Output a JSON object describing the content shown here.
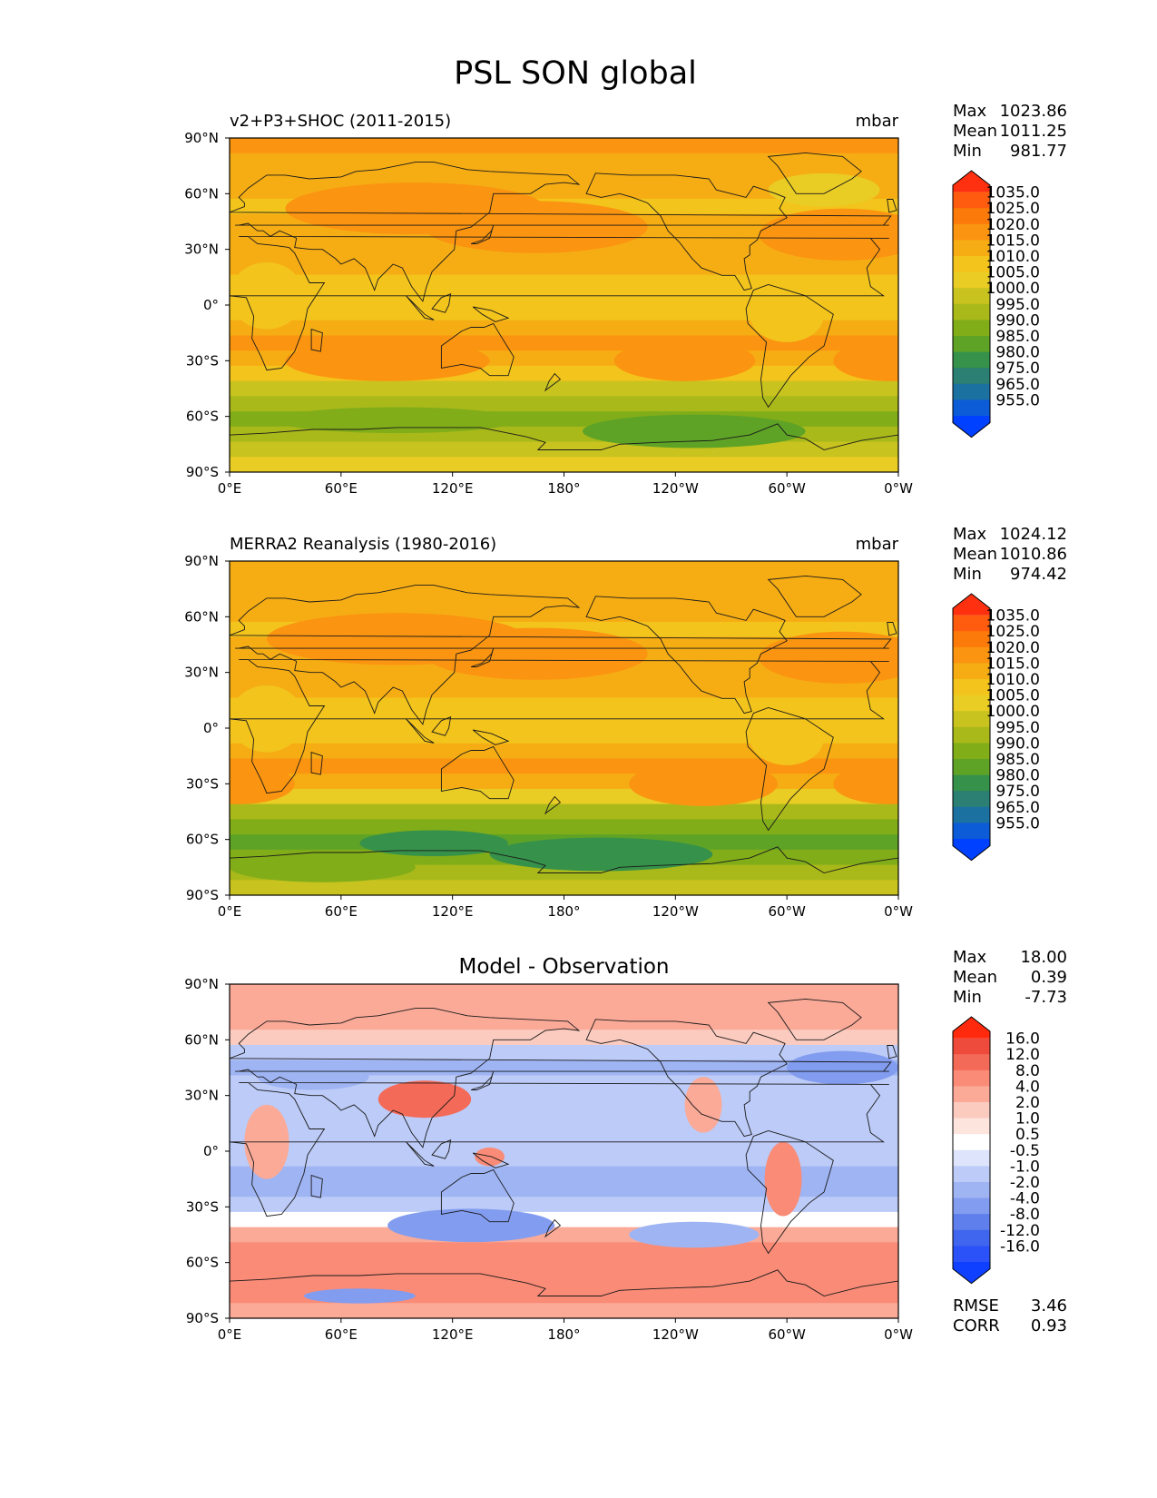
{
  "title": "PSL SON global",
  "chart_data": {
    "type": "heatmap",
    "suptitle": "PSL SON global",
    "x_ticks": [
      "0°E",
      "60°E",
      "120°E",
      "180°",
      "120°W",
      "60°W",
      "0°W"
    ],
    "y_ticks": [
      "90°N",
      "60°N",
      "30°N",
      "0°",
      "30°S",
      "60°S",
      "90°S"
    ],
    "xlim": [
      0,
      360
    ],
    "ylim": [
      -90,
      90
    ],
    "panels": [
      {
        "id": "model",
        "left_title": "v2+P3+SHOC (2011-2015)",
        "right_title": "mbar",
        "stats": [
          {
            "label": "Max",
            "value": "1023.86"
          },
          {
            "label": "Mean",
            "value": "1011.25"
          },
          {
            "label": "Min",
            "value": "981.77"
          }
        ],
        "colorbar_levels": [
          "1035.0",
          "1025.0",
          "1020.0",
          "1015.0",
          "1010.0",
          "1005.0",
          "1000.0",
          "995.0",
          "990.0",
          "985.0",
          "980.0",
          "975.0",
          "965.0",
          "955.0"
        ],
        "colorbar_colors": [
          "#ff3010",
          "#ff5c0f",
          "#fc7a0a",
          "#fb9410",
          "#f6ad14",
          "#f3c41c",
          "#e9cc24",
          "#c8c31f",
          "#a9b91a",
          "#81ad19",
          "#5ea326",
          "#36914a",
          "#2b7f73",
          "#1b71a0",
          "#0c5cd8",
          "#0040ff"
        ],
        "colorbar_extend": "both",
        "band_values": [
          1016.5,
          1015,
          1013,
          1011,
          1008,
          1011,
          1013,
          1014.5,
          1012,
          1010,
          1008,
          1009.5,
          1014.5,
          1016.5,
          1013,
          1006,
          1000,
          993,
          990,
          994,
          998,
          1002
        ],
        "highs": [
          {
            "lon": 100,
            "lat": 52,
            "rx": 70,
            "ry": 14,
            "value": 1018
          },
          {
            "lon": 165,
            "lat": 42,
            "rx": 60,
            "ry": 14,
            "value": 1018
          },
          {
            "lon": 330,
            "lat": 38,
            "rx": 45,
            "ry": 14,
            "value": 1018
          },
          {
            "lon": 85,
            "lat": -30,
            "rx": 55,
            "ry": 11,
            "value": 1019
          },
          {
            "lon": 245,
            "lat": -30,
            "rx": 38,
            "ry": 11,
            "value": 1019
          },
          {
            "lon": 355,
            "lat": -30,
            "rx": 30,
            "ry": 11,
            "value": 1019
          },
          {
            "lon": 20,
            "lat": 5,
            "rx": 20,
            "ry": 18,
            "value": 1009
          },
          {
            "lon": 300,
            "lat": -5,
            "rx": 20,
            "ry": 15,
            "value": 1009
          }
        ],
        "lows": [
          {
            "lon": 90,
            "lat": -62,
            "rx": 65,
            "ry": 7,
            "value": 988
          },
          {
            "lon": 250,
            "lat": -68,
            "rx": 60,
            "ry": 9,
            "value": 984
          },
          {
            "lon": 320,
            "lat": 62,
            "rx": 30,
            "ry": 9,
            "value": 1005
          }
        ],
        "rmse": null,
        "corr": null
      },
      {
        "id": "observation",
        "left_title": "MERRA2 Reanalysis (1980-2016)",
        "right_title": "mbar",
        "stats": [
          {
            "label": "Max",
            "value": "1024.12"
          },
          {
            "label": "Mean",
            "value": "1010.86"
          },
          {
            "label": "Min",
            "value": "974.42"
          }
        ],
        "colorbar_levels": [
          "1035.0",
          "1025.0",
          "1020.0",
          "1015.0",
          "1010.0",
          "1005.0",
          "1000.0",
          "995.0",
          "990.0",
          "985.0",
          "980.0",
          "975.0",
          "965.0",
          "955.0"
        ],
        "colorbar_colors": [
          "#ff3010",
          "#ff5c0f",
          "#fc7a0a",
          "#fb9410",
          "#f6ad14",
          "#f3c41c",
          "#e9cc24",
          "#c8c31f",
          "#a9b91a",
          "#81ad19",
          "#5ea326",
          "#36914a",
          "#2b7f73",
          "#1b71a0",
          "#0c5cd8",
          "#0040ff"
        ],
        "colorbar_extend": "both",
        "band_values": [
          1012,
          1012.5,
          1012.5,
          1011,
          1008,
          1011,
          1013,
          1014.5,
          1012,
          1010,
          1008,
          1009.5,
          1014.5,
          1016,
          1013,
          1004,
          995,
          987,
          983,
          987,
          993,
          998
        ],
        "highs": [
          {
            "lon": 90,
            "lat": 48,
            "rx": 70,
            "ry": 14,
            "value": 1019
          },
          {
            "lon": 165,
            "lat": 40,
            "rx": 60,
            "ry": 14,
            "value": 1018
          },
          {
            "lon": 330,
            "lat": 38,
            "rx": 45,
            "ry": 14,
            "value": 1018
          },
          {
            "lon": 5,
            "lat": -30,
            "rx": 30,
            "ry": 11,
            "value": 1019
          },
          {
            "lon": 255,
            "lat": -30,
            "rx": 40,
            "ry": 12,
            "value": 1020
          },
          {
            "lon": 355,
            "lat": -30,
            "rx": 30,
            "ry": 11,
            "value": 1019
          },
          {
            "lon": 20,
            "lat": 5,
            "rx": 20,
            "ry": 18,
            "value": 1009
          },
          {
            "lon": 300,
            "lat": -5,
            "rx": 20,
            "ry": 15,
            "value": 1009
          }
        ],
        "lows": [
          {
            "lon": 110,
            "lat": -62,
            "rx": 40,
            "ry": 7,
            "value": 978
          },
          {
            "lon": 200,
            "lat": -68,
            "rx": 60,
            "ry": 9,
            "value": 977
          },
          {
            "lon": 50,
            "lat": -75,
            "rx": 50,
            "ry": 8,
            "value": 990
          }
        ],
        "rmse": null,
        "corr": null
      },
      {
        "id": "difference",
        "center_title": "Model - Observation",
        "stats": [
          {
            "label": "Max",
            "value": "18.00"
          },
          {
            "label": "Mean",
            "value": "0.39"
          },
          {
            "label": "Min",
            "value": "-7.73"
          }
        ],
        "colorbar_levels": [
          "16.0",
          "12.0",
          "8.0",
          "4.0",
          "2.0",
          "1.0",
          "0.5",
          "-0.5",
          "-1.0",
          "-2.0",
          "-4.0",
          "-8.0",
          "-12.0",
          "-16.0"
        ],
        "colorbar_colors": [
          "#ff2a0d",
          "#ee4b3d",
          "#f46a58",
          "#f98b77",
          "#fbaa98",
          "#fccbbf",
          "#fde4dd",
          "#ffffff",
          "#dde4fb",
          "#bccbf7",
          "#9fb4f3",
          "#829cef",
          "#5e7fec",
          "#4066f0",
          "#2b52f8",
          "#0f40ff"
        ],
        "colorbar_extend": "both",
        "band_values": [
          4,
          3.5,
          2.5,
          1.5,
          -1.5,
          -2,
          -1.5,
          -1.5,
          -1.5,
          -1,
          -1,
          -1,
          -2,
          -3,
          -1,
          0.2,
          3,
          6,
          7,
          6,
          5,
          4
        ],
        "highs": [
          {
            "lon": 105,
            "lat": 28,
            "rx": 25,
            "ry": 10,
            "value": 10
          },
          {
            "lon": 20,
            "lat": 5,
            "rx": 12,
            "ry": 20,
            "value": 3
          },
          {
            "lon": 298,
            "lat": -15,
            "rx": 10,
            "ry": 20,
            "value": 5
          },
          {
            "lon": 255,
            "lat": 25,
            "rx": 10,
            "ry": 15,
            "value": 3
          },
          {
            "lon": 140,
            "lat": -3,
            "rx": 8,
            "ry": 5,
            "value": 5
          }
        ],
        "lows": [
          {
            "lon": 130,
            "lat": -40,
            "rx": 45,
            "ry": 9,
            "value": -5
          },
          {
            "lon": 250,
            "lat": -45,
            "rx": 35,
            "ry": 7,
            "value": -3
          },
          {
            "lon": 330,
            "lat": 45,
            "rx": 30,
            "ry": 9,
            "value": -4
          },
          {
            "lon": 45,
            "lat": 40,
            "rx": 30,
            "ry": 7,
            "value": -3
          },
          {
            "lon": 70,
            "lat": -78,
            "rx": 30,
            "ry": 4,
            "value": -4
          }
        ],
        "rmse": {
          "label": "RMSE",
          "value": "3.46"
        },
        "corr": {
          "label": "CORR",
          "value": "0.93"
        }
      }
    ]
  }
}
